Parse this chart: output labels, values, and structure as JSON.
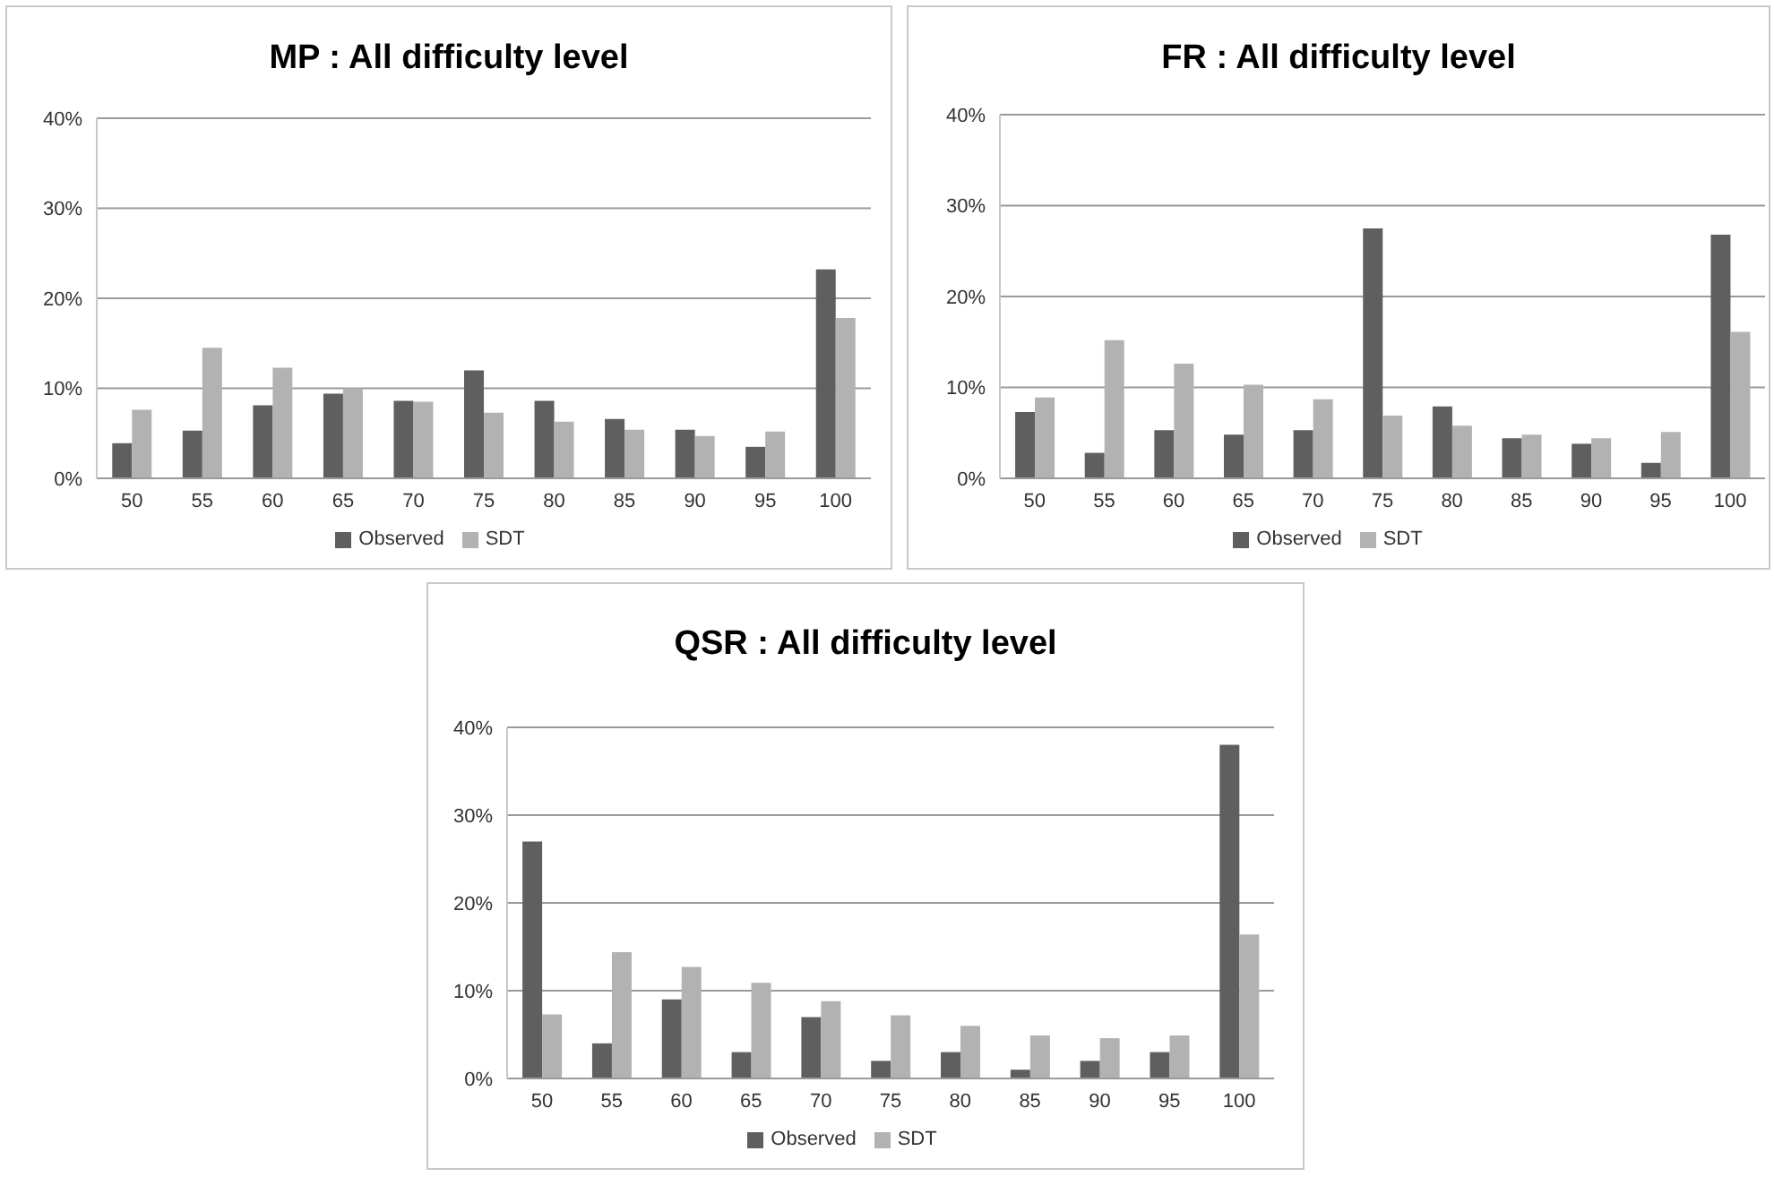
{
  "chart_data": [
    {
      "type": "bar",
      "title": "MP : All difficulty level",
      "categories": [
        "50",
        "55",
        "60",
        "65",
        "70",
        "75",
        "80",
        "85",
        "90",
        "95",
        "100"
      ],
      "series": [
        {
          "name": "Observed",
          "color": "#5f5f5f",
          "values": [
            3.9,
            5.3,
            8.1,
            9.4,
            8.6,
            12,
            8.6,
            6.6,
            5.4,
            3.5,
            23.2
          ]
        },
        {
          "name": "SDT",
          "color": "#b2b2b2",
          "values": [
            7.6,
            14.5,
            12.3,
            10,
            8.5,
            7.3,
            6.3,
            5.4,
            4.7,
            5.2,
            17.8
          ]
        }
      ],
      "ylim": [
        0,
        40
      ],
      "yticks": [
        {
          "value": 0,
          "label": "0%"
        },
        {
          "value": 10,
          "label": "10%"
        },
        {
          "value": 20,
          "label": "20%"
        },
        {
          "value": 30,
          "label": "30%"
        },
        {
          "value": 40,
          "label": "40%"
        }
      ],
      "grid": "y",
      "legend": "bottom"
    },
    {
      "type": "bar",
      "title": "FR : All difficulty level",
      "categories": [
        "50",
        "55",
        "60",
        "65",
        "70",
        "75",
        "80",
        "85",
        "90",
        "95",
        "100"
      ],
      "series": [
        {
          "name": "Observed",
          "color": "#5f5f5f",
          "values": [
            7.3,
            2.8,
            5.3,
            4.8,
            5.3,
            27.5,
            7.9,
            4.4,
            3.8,
            1.7,
            26.8
          ]
        },
        {
          "name": "SDT",
          "color": "#b2b2b2",
          "values": [
            8.9,
            15.2,
            12.6,
            10.3,
            8.7,
            6.9,
            5.8,
            4.8,
            4.4,
            5.1,
            16.1
          ]
        }
      ],
      "ylim": [
        0,
        40
      ],
      "yticks": [
        {
          "value": 0,
          "label": "0%"
        },
        {
          "value": 10,
          "label": "10%"
        },
        {
          "value": 20,
          "label": "20%"
        },
        {
          "value": 30,
          "label": "30%"
        },
        {
          "value": 40,
          "label": "40%"
        }
      ],
      "grid": "y",
      "legend": "bottom"
    },
    {
      "type": "bar",
      "title": "QSR : All difficulty level",
      "categories": [
        "50",
        "55",
        "60",
        "65",
        "70",
        "75",
        "80",
        "85",
        "90",
        "95",
        "100"
      ],
      "series": [
        {
          "name": "Observed",
          "color": "#5f5f5f",
          "values": [
            27,
            4,
            9,
            3,
            7,
            2,
            3,
            1,
            2,
            3,
            38
          ]
        },
        {
          "name": "SDT",
          "color": "#b2b2b2",
          "values": [
            7.3,
            14.4,
            12.7,
            10.9,
            8.8,
            7.2,
            6,
            4.9,
            4.6,
            4.9,
            16.4
          ]
        }
      ],
      "ylim": [
        0,
        40
      ],
      "yticks": [
        {
          "value": 0,
          "label": "0%"
        },
        {
          "value": 10,
          "label": "10%"
        },
        {
          "value": 20,
          "label": "20%"
        },
        {
          "value": 30,
          "label": "30%"
        },
        {
          "value": 40,
          "label": "40%"
        }
      ],
      "grid": "y",
      "legend": "bottom"
    }
  ]
}
